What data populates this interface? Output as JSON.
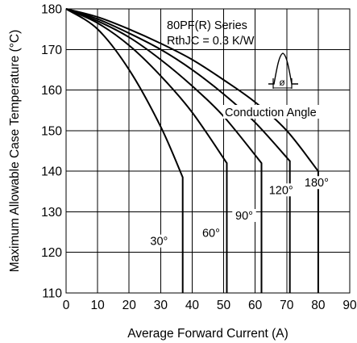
{
  "chart_data": {
    "type": "line",
    "title": "",
    "xlabel": "Average Forward Current (A)",
    "ylabel": "Maximum Allowable Case Temperature (°C)",
    "xlim": [
      0,
      90
    ],
    "ylim": [
      110,
      180
    ],
    "xticks": [
      0,
      10,
      20,
      30,
      40,
      50,
      60,
      70,
      80,
      90
    ],
    "yticks": [
      110,
      120,
      130,
      140,
      150,
      160,
      170,
      180
    ],
    "grid": true,
    "annotations": [
      "80PF(R) Series",
      "RthJC = 0.3 K/W",
      "Conduction Angle",
      "ø"
    ],
    "series": [
      {
        "name": "30°",
        "x": [
          0,
          10,
          20,
          30,
          37
        ],
        "y": [
          180,
          175,
          165,
          151,
          138.5
        ]
      },
      {
        "name": "60°",
        "x": [
          0,
          10,
          20,
          30,
          40,
          51
        ],
        "y": [
          180,
          176.5,
          171,
          163.5,
          154.5,
          142
        ]
      },
      {
        "name": "90°",
        "x": [
          0,
          10,
          20,
          30,
          40,
          50,
          62
        ],
        "y": [
          180,
          177,
          173,
          167.5,
          161,
          153.5,
          142
        ]
      },
      {
        "name": "120°",
        "x": [
          0,
          10,
          20,
          30,
          40,
          50,
          60,
          71
        ],
        "y": [
          180,
          177.5,
          174,
          170,
          165,
          159,
          152,
          142.5
        ]
      },
      {
        "name": "180°",
        "x": [
          0,
          10,
          20,
          30,
          40,
          50,
          60,
          70,
          80
        ],
        "y": [
          180,
          178,
          175,
          171.5,
          167.5,
          162.5,
          157,
          150,
          140
        ]
      }
    ]
  }
}
